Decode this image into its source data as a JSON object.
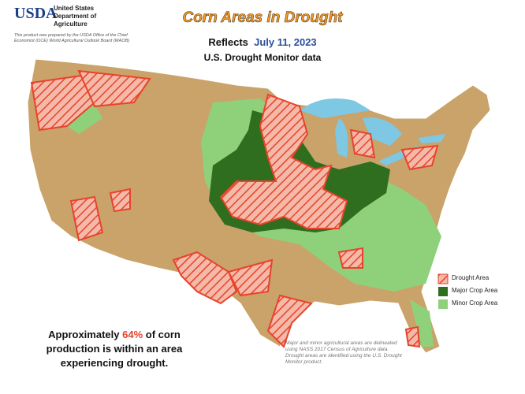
{
  "header": {
    "logo": "USDA",
    "agency": "United States Department of Agriculture",
    "credit": "This product was prepared by the USDA Office of the Chief Economist (OCE) World Agricultural Outlook Board (WAOB)"
  },
  "title": "Corn Areas in Drought",
  "subtitle": {
    "prefix": "Reflects",
    "date": "July 11, 2023",
    "source": "U.S. Drought Monitor data"
  },
  "legend": {
    "items": [
      "Drought Area",
      "Major Crop Area",
      "Minor Crop Area"
    ]
  },
  "statement": {
    "before": "Approximately",
    "percent": "64%",
    "after": "of corn production is within an area experiencing drought."
  },
  "note": "Major and minor agricultural areas are delineated using NASS 2017 Census of Agriculture data. Drought areas are identified using the U.S. Drought Monitor product."
}
